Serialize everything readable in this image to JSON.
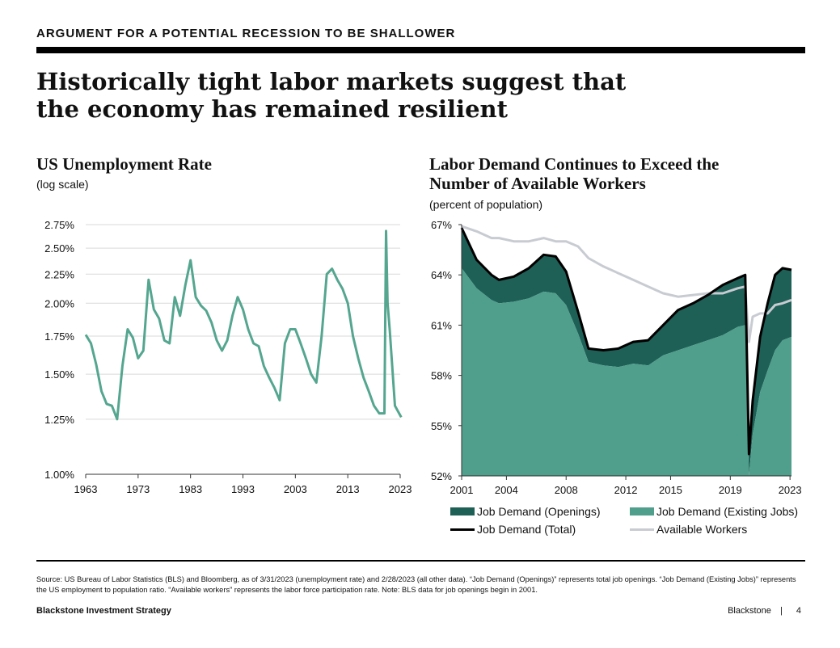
{
  "header": {
    "eyebrow": "ARGUMENT FOR A POTENTIAL RECESSION TO BE SHALLOWER",
    "headline_line1": "Historically tight labor markets suggest that",
    "headline_line2": "the economy has remained resilient"
  },
  "colors": {
    "teal_light": "#4f9f8c",
    "teal_dark": "#1e5f56",
    "unemp_line": "#55a68f",
    "total_line": "#000000",
    "workers_line": "#c8ccd2",
    "grid": "#d9d9d9"
  },
  "chart_data": [
    {
      "type": "line",
      "title": "US Unemployment Rate",
      "subtitle": "(log scale)",
      "scale": "log",
      "ylim": [
        1.0,
        2.75
      ],
      "yticks": [
        "2.75%",
        "2.50%",
        "2.25%",
        "2.00%",
        "1.75%",
        "1.50%",
        "1.25%",
        "1.00%"
      ],
      "xticks": [
        "1963",
        "1973",
        "1983",
        "1993",
        "2003",
        "2013",
        "2023"
      ],
      "grid": true,
      "x": [
        1963,
        1964,
        1965,
        1966,
        1967,
        1968,
        1969,
        1970,
        1971,
        1972,
        1973,
        1974,
        1975,
        1976,
        1977,
        1978,
        1979,
        1980,
        1981,
        1982,
        1983,
        1984,
        1985,
        1986,
        1987,
        1988,
        1989,
        1990,
        1991,
        1992,
        1993,
        1994,
        1995,
        1996,
        1997,
        1998,
        1999,
        2000,
        2001,
        2002,
        2003,
        2004,
        2005,
        2006,
        2007,
        2008,
        2009,
        2010,
        2011,
        2012,
        2013,
        2014,
        2015,
        2016,
        2017,
        2018,
        2019,
        2020.0,
        2020.3,
        2020.6,
        2021,
        2022,
        2023.2
      ],
      "values": [
        1.76,
        1.7,
        1.56,
        1.4,
        1.33,
        1.32,
        1.25,
        1.55,
        1.8,
        1.74,
        1.6,
        1.65,
        2.2,
        1.95,
        1.88,
        1.72,
        1.7,
        2.05,
        1.9,
        2.15,
        2.38,
        2.05,
        1.98,
        1.94,
        1.85,
        1.72,
        1.65,
        1.72,
        1.9,
        2.05,
        1.95,
        1.8,
        1.7,
        1.68,
        1.55,
        1.48,
        1.42,
        1.35,
        1.7,
        1.8,
        1.8,
        1.7,
        1.6,
        1.5,
        1.45,
        1.75,
        2.25,
        2.3,
        2.2,
        2.12,
        2.0,
        1.75,
        1.6,
        1.48,
        1.4,
        1.32,
        1.28,
        1.28,
        2.68,
        2.0,
        1.8,
        1.32,
        1.26
      ]
    },
    {
      "type": "area",
      "title_line1": "Labor Demand Continues to Exceed the",
      "title_line2": "Number of Available Workers",
      "subtitle": "(percent of population)",
      "ylim": [
        52,
        67
      ],
      "yticks": [
        "67%",
        "64%",
        "61%",
        "58%",
        "55%",
        "52%"
      ],
      "xticks": [
        "2001",
        "2004",
        "2008",
        "2012",
        "2015",
        "2019",
        "2023"
      ],
      "x": [
        2001.0,
        2002.0,
        2003.0,
        2003.5,
        2004.5,
        2005.5,
        2006.5,
        2007.3,
        2008.0,
        2008.8,
        2009.5,
        2010.5,
        2011.5,
        2012.5,
        2013.5,
        2014.5,
        2015.5,
        2016.5,
        2017.5,
        2018.5,
        2019.5,
        2020.0,
        2020.25,
        2020.5,
        2021.0,
        2021.5,
        2022.0,
        2022.5,
        2023.1
      ],
      "series": [
        {
          "name": "Job Demand (Existing Jobs)",
          "values": [
            64.4,
            63.2,
            62.5,
            62.3,
            62.4,
            62.6,
            63.0,
            62.9,
            62.2,
            60.5,
            58.8,
            58.6,
            58.5,
            58.7,
            58.6,
            59.2,
            59.5,
            59.8,
            60.1,
            60.4,
            60.9,
            61.0,
            52.0,
            54.5,
            57.0,
            58.3,
            59.5,
            60.1,
            60.3
          ]
        },
        {
          "name": "Job Demand (Openings)",
          "values": [
            2.4,
            1.7,
            1.5,
            1.4,
            1.5,
            1.8,
            2.2,
            2.2,
            2.0,
            1.3,
            0.8,
            0.9,
            1.1,
            1.3,
            1.5,
            1.8,
            2.4,
            2.5,
            2.7,
            3.0,
            2.9,
            3.0,
            1.3,
            2.0,
            3.3,
            4.0,
            4.5,
            4.3,
            4.0
          ]
        },
        {
          "name": "Job Demand (Total)",
          "values": [
            66.8,
            64.9,
            64.0,
            63.7,
            63.9,
            64.4,
            65.2,
            65.1,
            64.2,
            61.8,
            59.6,
            59.5,
            59.6,
            60.0,
            60.1,
            61.0,
            61.9,
            62.3,
            62.8,
            63.4,
            63.8,
            64.0,
            53.3,
            56.5,
            60.3,
            62.3,
            64.0,
            64.4,
            64.3
          ]
        },
        {
          "name": "Available Workers",
          "values": [
            66.9,
            66.6,
            66.2,
            66.2,
            66.0,
            66.0,
            66.2,
            66.0,
            66.0,
            65.7,
            65.0,
            64.5,
            64.1,
            63.7,
            63.3,
            62.9,
            62.7,
            62.8,
            62.9,
            62.9,
            63.2,
            63.3,
            60.0,
            61.5,
            61.7,
            61.7,
            62.2,
            62.3,
            62.5
          ]
        }
      ]
    }
  ],
  "chart2_legend": {
    "openings": "Job Demand (Openings)",
    "existing": "Job Demand (Existing Jobs)",
    "total": "Job Demand (Total)",
    "workers": "Available Workers"
  },
  "footer": {
    "source": "Source: US Bureau of Labor Statistics (BLS) and Bloomberg, as of 3/31/2023 (unemployment rate) and 2/28/2023 (all other data). “Job Demand (Openings)” represents total job openings. “Job Demand (Existing Jobs)” represents the US employment to population ratio. “Available workers” represents the labor force participation rate. Note: BLS data for job openings begin in 2001.",
    "left": "Blackstone Investment Strategy",
    "brand": "Blackstone",
    "separator": "|",
    "page": "4"
  }
}
